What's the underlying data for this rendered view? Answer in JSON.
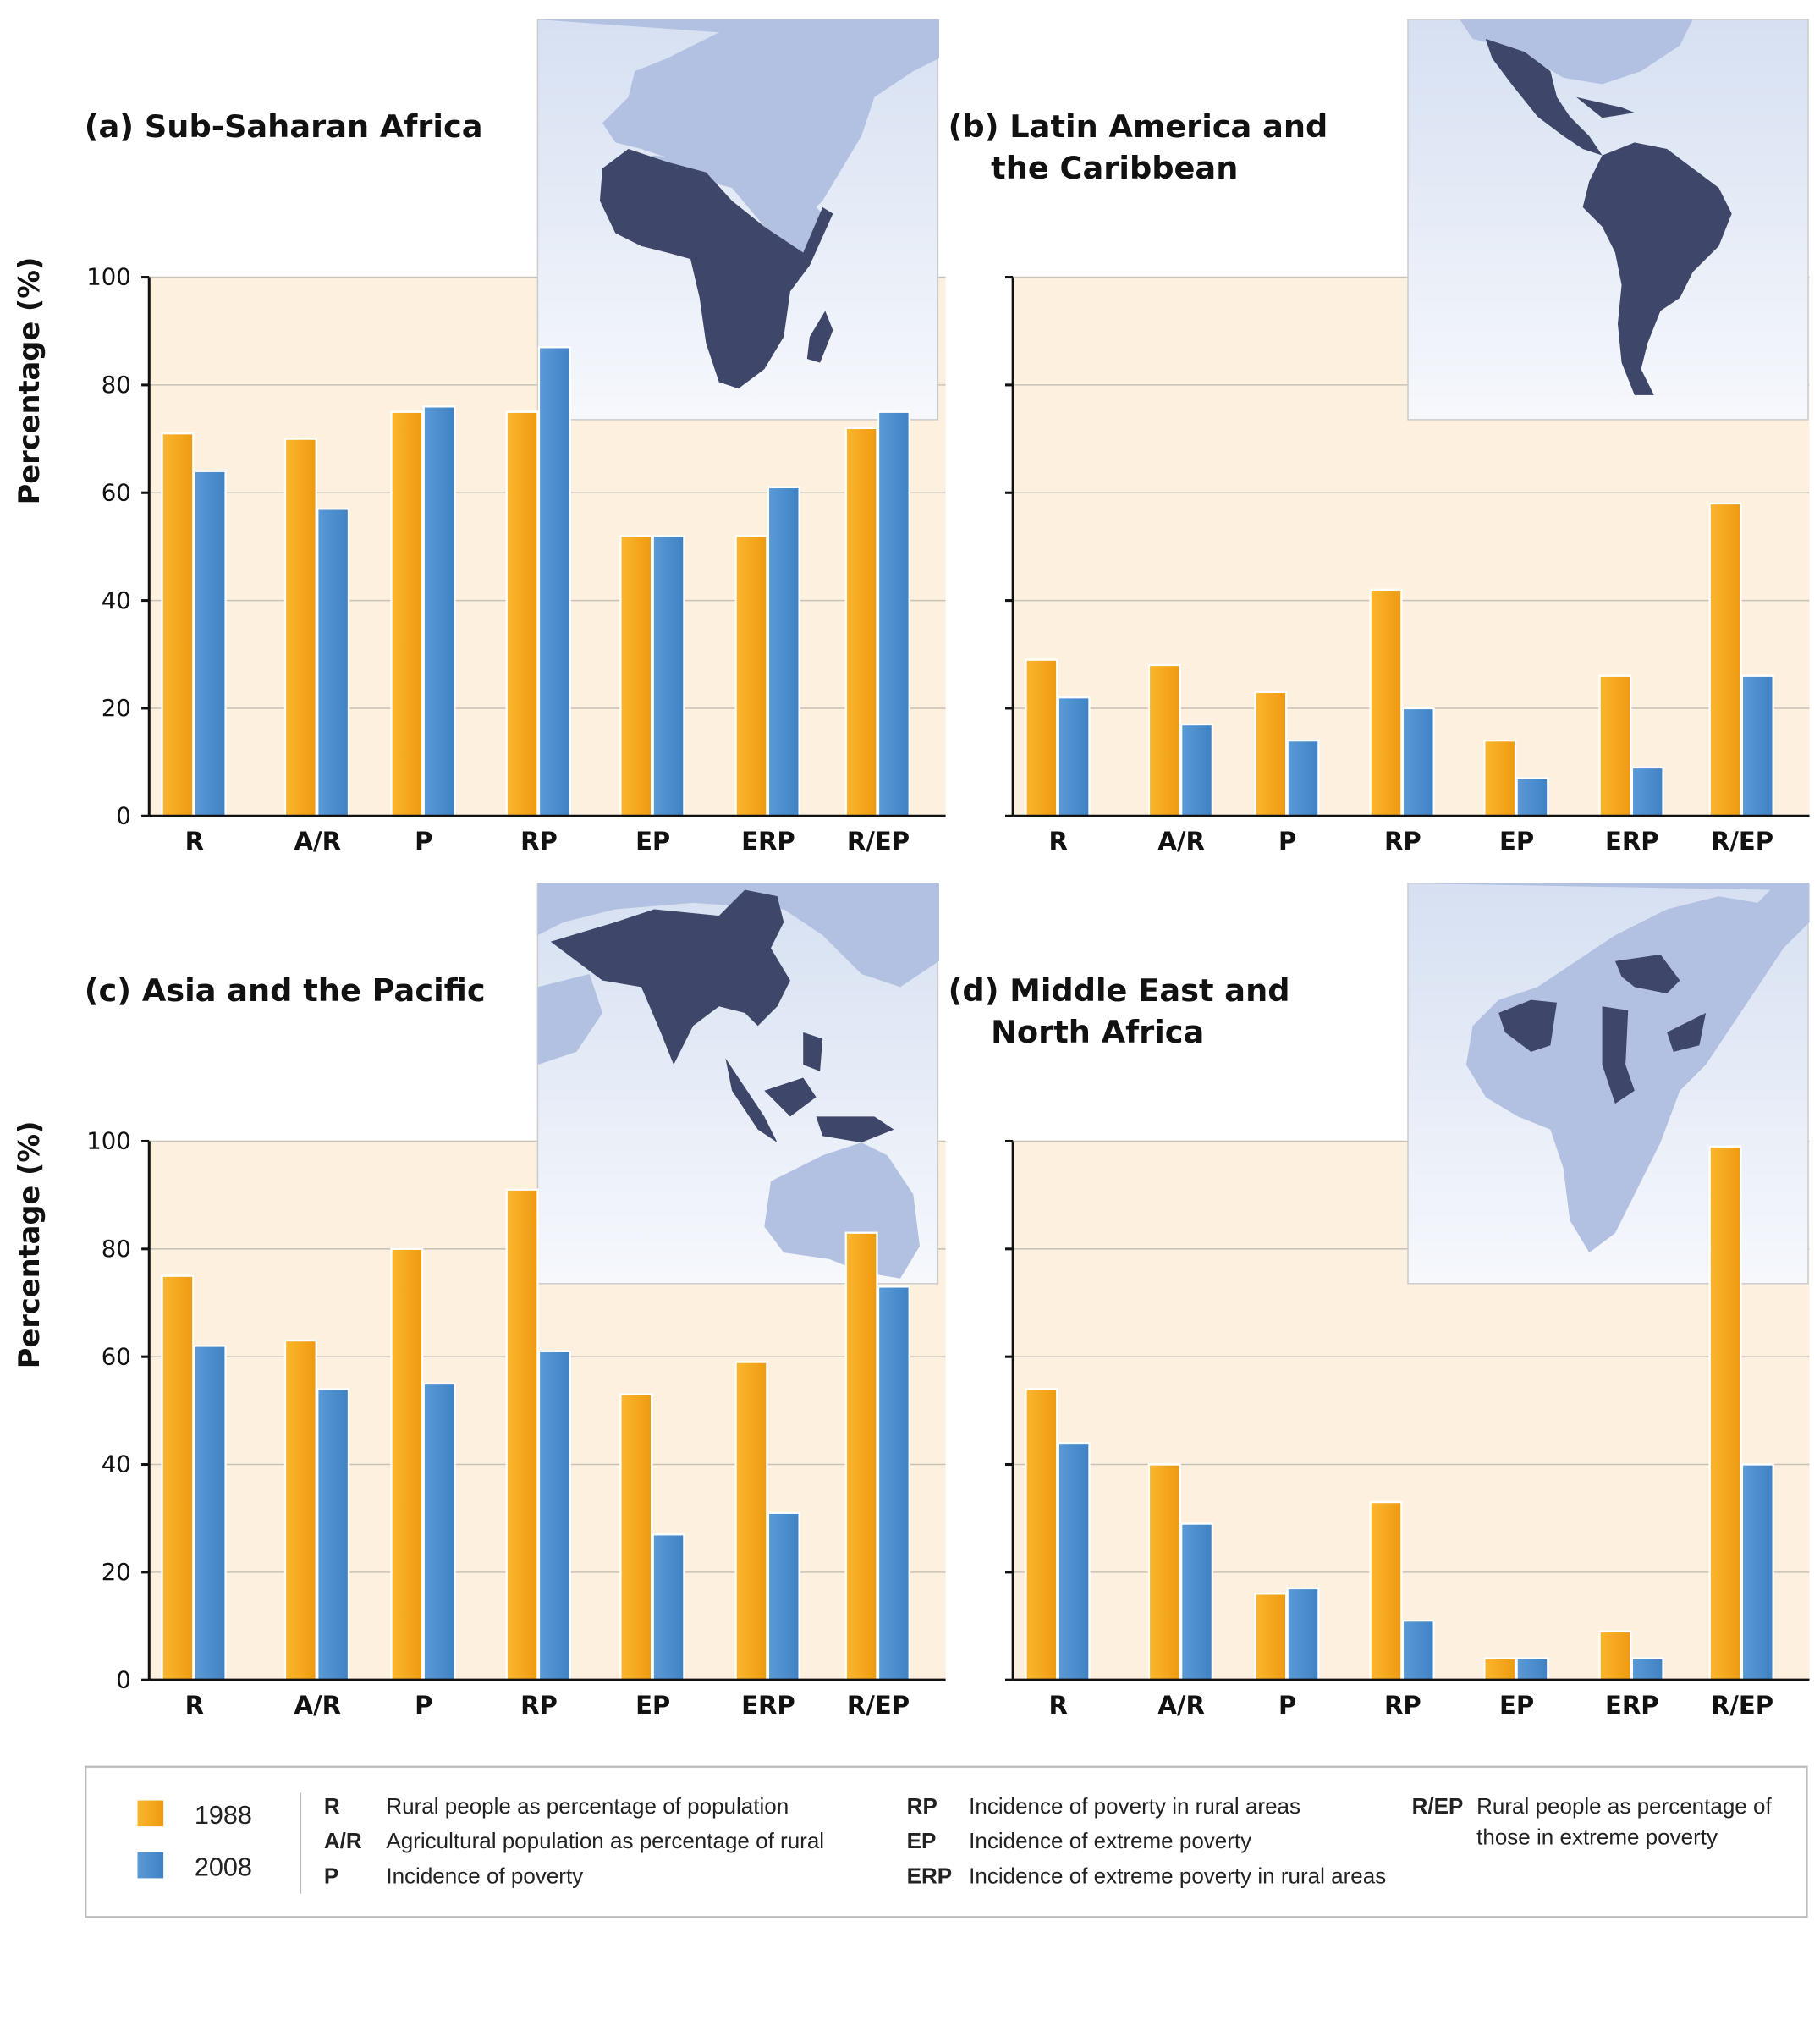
{
  "colors": {
    "1988": "#f8a81c",
    "2008": "#4b90d0",
    "plot_bg": "#fdf0df",
    "map_land_highlight": "#3e4669",
    "map_land": "#b2c1e2",
    "map_sea": "#e2e9f6"
  },
  "y_axis_label": "Percentage (%)",
  "chart_data": [
    {
      "type": "bar",
      "title_line1": "(a)  Sub-Saharan Africa",
      "title_line2": "",
      "map": "africa-sub-saharan-highlighted",
      "ylabel": "Percentage (%)",
      "ylim": [
        0,
        100
      ],
      "yticks": [
        "0",
        "20",
        "40",
        "60",
        "80",
        "100"
      ],
      "grid": true,
      "categories": [
        "R",
        "A/R",
        "P",
        "RP",
        "EP",
        "ERP",
        "R/EP"
      ],
      "series": [
        {
          "name": "1988",
          "values": [
            71,
            70,
            75,
            75,
            52,
            52,
            72
          ]
        },
        {
          "name": "2008",
          "values": [
            64,
            57,
            76,
            87,
            52,
            61,
            75
          ]
        }
      ]
    },
    {
      "type": "bar",
      "title_line1": "(b) Latin America and",
      "title_line2": "the Caribbean",
      "map": "latin-america-highlighted",
      "ylabel": "",
      "ylim": [
        0,
        100
      ],
      "yticks": [
        "",
        "",
        "",
        "",
        "",
        ""
      ],
      "grid": true,
      "categories": [
        "R",
        "A/R",
        "P",
        "RP",
        "EP",
        "ERP",
        "R/EP"
      ],
      "series": [
        {
          "name": "1988",
          "values": [
            29,
            28,
            23,
            42,
            14,
            26,
            58
          ]
        },
        {
          "name": "2008",
          "values": [
            22,
            17,
            14,
            20,
            7,
            9,
            26
          ]
        }
      ]
    },
    {
      "type": "bar",
      "title_line1": "(c)  Asia and the Pacific",
      "title_line2": "",
      "map": "asia-pacific-highlighted",
      "ylabel": "Percentage (%)",
      "ylim": [
        0,
        100
      ],
      "yticks": [
        "0",
        "20",
        "40",
        "60",
        "80",
        "100"
      ],
      "grid": true,
      "categories": [
        "R",
        "A/R",
        "P",
        "RP",
        "EP",
        "ERP",
        "R/EP"
      ],
      "series": [
        {
          "name": "1988",
          "values": [
            75,
            63,
            80,
            91,
            53,
            59,
            83
          ]
        },
        {
          "name": "2008",
          "values": [
            62,
            54,
            55,
            61,
            27,
            31,
            73
          ]
        }
      ]
    },
    {
      "type": "bar",
      "title_line1": "(d) Middle East and",
      "title_line2": "North Africa",
      "map": "middle-east-north-africa-highlighted",
      "ylabel": "",
      "ylim": [
        0,
        100
      ],
      "yticks": [
        "",
        "",
        "",
        "",
        "",
        ""
      ],
      "grid": true,
      "categories": [
        "R",
        "A/R",
        "P",
        "RP",
        "EP",
        "ERP",
        "R/EP"
      ],
      "series": [
        {
          "name": "1988",
          "values": [
            54,
            40,
            16,
            33,
            4,
            9,
            99
          ]
        },
        {
          "name": "2008",
          "values": [
            44,
            29,
            17,
            11,
            4,
            4,
            40
          ]
        }
      ]
    }
  ],
  "legend": {
    "years": [
      "1988",
      "2008"
    ],
    "definitions": [
      {
        "abbr": "R",
        "text": "Rural people as percentage of population"
      },
      {
        "abbr": "A/R",
        "text": "Agricultural population as percentage of rural"
      },
      {
        "abbr": "P",
        "text": "Incidence of poverty"
      },
      {
        "abbr": "RP",
        "text": "Incidence of poverty in rural areas"
      },
      {
        "abbr": "EP",
        "text": "Incidence of extreme poverty"
      },
      {
        "abbr": "ERP",
        "text": "Incidence of extreme poverty in rural areas"
      },
      {
        "abbr": "R/EP",
        "text": "Rural people as percentage of",
        "text2": "those in extreme poverty"
      }
    ]
  }
}
